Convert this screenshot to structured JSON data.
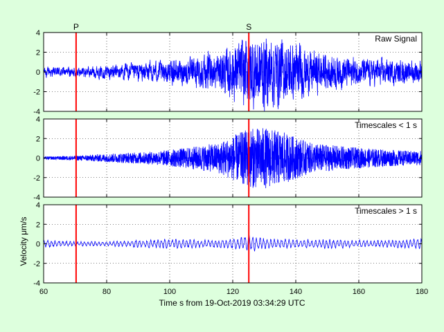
{
  "chart_data": {
    "type": "line",
    "xlabel": "Time s from 19-Oct-2019 03:34:29 UTC",
    "ylabel": "Velocity μm/s",
    "xlim": [
      60,
      180
    ],
    "ylim": [
      -4,
      4
    ],
    "x_ticks": [
      60,
      80,
      100,
      120,
      140,
      160,
      180
    ],
    "y_ticks": [
      -4,
      -2,
      0,
      2,
      4
    ],
    "grid": true,
    "line_color": "#0000ff",
    "pick_color": "#ff0000",
    "picks": [
      {
        "label": "P",
        "x": 70.3
      },
      {
        "label": "S",
        "x": 125.1
      }
    ],
    "panels": [
      {
        "name": "Raw Signal",
        "amplitude_envelope": [
          [
            60,
            0.45
          ],
          [
            70,
            0.4
          ],
          [
            80,
            0.6
          ],
          [
            95,
            0.9
          ],
          [
            105,
            1.2
          ],
          [
            115,
            1.7
          ],
          [
            122,
            2.8
          ],
          [
            125,
            3.5
          ],
          [
            130,
            3.4
          ],
          [
            136,
            3.0
          ],
          [
            145,
            1.9
          ],
          [
            160,
            1.2
          ],
          [
            175,
            1.0
          ],
          [
            180,
            1.0
          ]
        ]
      },
      {
        "name": "Timescales < 1 s",
        "amplitude_envelope": [
          [
            60,
            0.15
          ],
          [
            70,
            0.25
          ],
          [
            80,
            0.45
          ],
          [
            95,
            0.7
          ],
          [
            105,
            1.1
          ],
          [
            115,
            1.6
          ],
          [
            122,
            2.7
          ],
          [
            125,
            3.2
          ],
          [
            130,
            3.3
          ],
          [
            136,
            2.8
          ],
          [
            145,
            1.6
          ],
          [
            160,
            1.1
          ],
          [
            175,
            0.8
          ],
          [
            180,
            0.8
          ]
        ]
      },
      {
        "name": "Timescales > 1 s",
        "amplitude_envelope": [
          [
            60,
            0.4
          ],
          [
            70,
            0.25
          ],
          [
            80,
            0.25
          ],
          [
            95,
            0.45
          ],
          [
            100,
            0.55
          ],
          [
            110,
            0.4
          ],
          [
            120,
            0.5
          ],
          [
            125,
            0.9
          ],
          [
            130,
            0.6
          ],
          [
            140,
            0.45
          ],
          [
            150,
            0.5
          ],
          [
            160,
            0.4
          ],
          [
            170,
            0.35
          ],
          [
            180,
            0.55
          ]
        ]
      }
    ]
  }
}
